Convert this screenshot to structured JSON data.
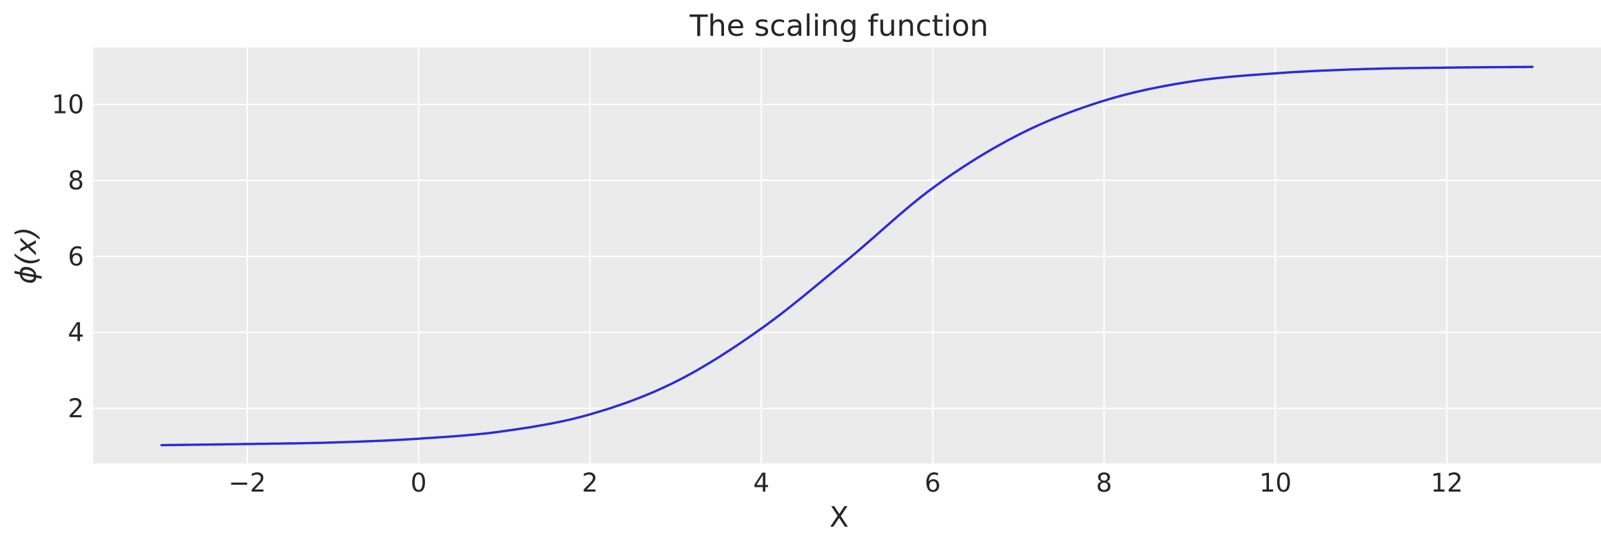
{
  "chart_data": {
    "type": "line",
    "title": "The scaling function",
    "xlabel": "X",
    "ylabel": "ϕ(x)",
    "xlim": [
      -3.8,
      13.8
    ],
    "ylim": [
      0.55,
      11.5
    ],
    "xticks": [
      -2,
      0,
      2,
      4,
      6,
      8,
      10,
      12
    ],
    "xtick_labels": [
      "−2",
      "0",
      "2",
      "4",
      "6",
      "8",
      "10",
      "12"
    ],
    "yticks": [
      2,
      4,
      6,
      8,
      10
    ],
    "ytick_labels": [
      "2",
      "4",
      "6",
      "8",
      "10"
    ],
    "grid": true,
    "background_color": "#ebebeb",
    "series": [
      {
        "color": "#2a2adb",
        "x": [
          -3,
          -2,
          -1,
          0,
          1,
          2,
          3,
          4,
          5,
          6,
          7,
          8,
          9,
          10,
          11,
          12,
          13
        ],
        "y": [
          1.03,
          1.06,
          1.1,
          1.2,
          1.4,
          1.84,
          2.7,
          4.1,
          5.9,
          7.8,
          9.2,
          10.1,
          10.6,
          10.82,
          10.93,
          10.97,
          10.99
        ]
      }
    ]
  }
}
